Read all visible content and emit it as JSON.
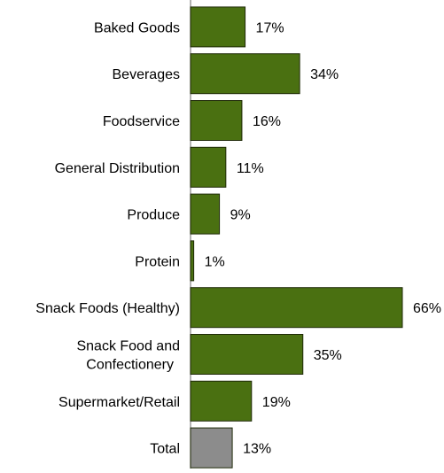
{
  "chart_data": {
    "type": "bar",
    "orientation": "horizontal",
    "title": "",
    "xlabel": "",
    "ylabel": "",
    "xlim": [
      0,
      66
    ],
    "grid": false,
    "categories": [
      [
        "Baked Goods"
      ],
      [
        "Beverages"
      ],
      [
        "Foodservice"
      ],
      [
        "General Distribution"
      ],
      [
        "Produce"
      ],
      [
        "Protein"
      ],
      [
        "Snack Foods (Healthy)"
      ],
      [
        "Snack Food and",
        "Confectionery"
      ],
      [
        "Supermarket/Retail"
      ],
      [
        "Total"
      ]
    ],
    "values": [
      17,
      34,
      16,
      11,
      9,
      1,
      66,
      35,
      19,
      13
    ],
    "value_labels": [
      "17%",
      "34%",
      "16%",
      "11%",
      "9%",
      "1%",
      "66%",
      "35%",
      "19%",
      "13%"
    ],
    "bar_colors": [
      "#4a7011",
      "#4a7011",
      "#4a7011",
      "#4a7011",
      "#4a7011",
      "#4a7011",
      "#4a7011",
      "#4a7011",
      "#4a7011",
      "#8c8c8c"
    ],
    "bar_stroke": "#1f2a08",
    "axis_color": "#8c8c8c"
  }
}
